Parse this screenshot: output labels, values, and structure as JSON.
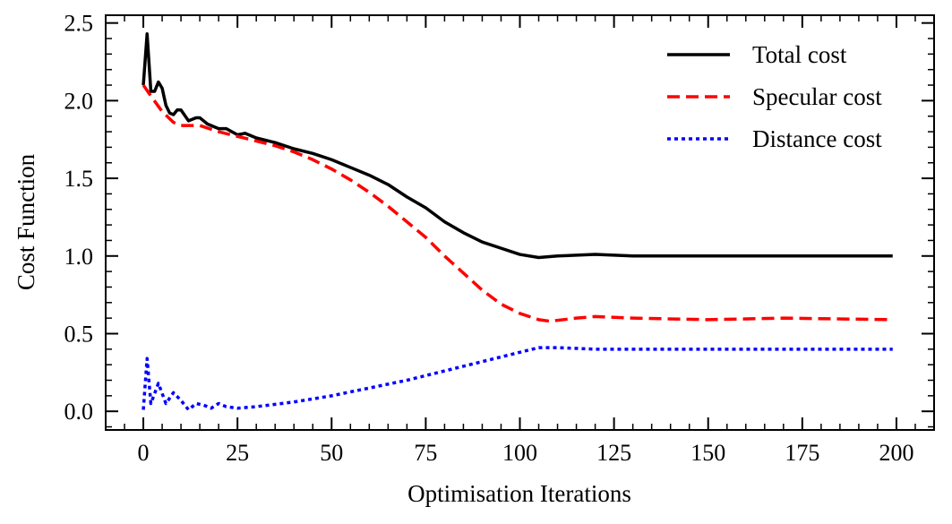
{
  "chart_data": {
    "type": "line",
    "xlabel": "Optimisation Iterations",
    "ylabel": "Cost Function",
    "xlim": [
      -10,
      210
    ],
    "ylim": [
      -0.12,
      2.55
    ],
    "xticks": [
      0,
      25,
      50,
      75,
      100,
      125,
      150,
      175,
      200
    ],
    "yticks": [
      0.0,
      0.5,
      1.0,
      1.5,
      2.0,
      2.5
    ],
    "xtick_labels": [
      "0",
      "25",
      "50",
      "75",
      "100",
      "125",
      "150",
      "175",
      "200"
    ],
    "ytick_labels": [
      "0.0",
      "0.5",
      "1.0",
      "1.5",
      "2.0",
      "2.5"
    ],
    "grid": false,
    "legend_position": "top-right",
    "series": [
      {
        "name": "Total cost",
        "color": "#000000",
        "style": "solid",
        "x": [
          0,
          1,
          2,
          3,
          4,
          5,
          6,
          7,
          8,
          9,
          10,
          12,
          14,
          15,
          17,
          20,
          22,
          25,
          27,
          30,
          35,
          40,
          45,
          50,
          55,
          60,
          65,
          70,
          75,
          80,
          85,
          90,
          95,
          100,
          105,
          110,
          120,
          130,
          140,
          160,
          180,
          199
        ],
        "y": [
          2.1,
          2.43,
          2.06,
          2.06,
          2.12,
          2.08,
          1.97,
          1.92,
          1.91,
          1.94,
          1.94,
          1.87,
          1.89,
          1.89,
          1.85,
          1.82,
          1.82,
          1.78,
          1.79,
          1.76,
          1.73,
          1.69,
          1.66,
          1.62,
          1.57,
          1.52,
          1.46,
          1.38,
          1.31,
          1.22,
          1.15,
          1.09,
          1.05,
          1.01,
          0.99,
          1.0,
          1.01,
          1.0,
          1.0,
          1.0,
          1.0,
          1.0
        ]
      },
      {
        "name": "Specular cost",
        "color": "#ff0000",
        "style": "dashed",
        "x": [
          0,
          2,
          5,
          8,
          10,
          15,
          20,
          25,
          30,
          35,
          40,
          45,
          50,
          55,
          60,
          65,
          70,
          75,
          80,
          85,
          90,
          95,
          100,
          105,
          108,
          115,
          120,
          130,
          150,
          170,
          199
        ],
        "y": [
          2.1,
          2.03,
          1.93,
          1.86,
          1.84,
          1.84,
          1.8,
          1.77,
          1.74,
          1.71,
          1.67,
          1.62,
          1.56,
          1.49,
          1.41,
          1.32,
          1.22,
          1.12,
          1.0,
          0.89,
          0.78,
          0.69,
          0.63,
          0.59,
          0.58,
          0.6,
          0.61,
          0.6,
          0.59,
          0.6,
          0.59
        ]
      },
      {
        "name": "Distance cost",
        "color": "#0000ff",
        "style": "dotted",
        "x": [
          0,
          1,
          2,
          4,
          6,
          8,
          10,
          12,
          14,
          16,
          18,
          20,
          22,
          25,
          30,
          40,
          50,
          60,
          70,
          80,
          90,
          100,
          105,
          110,
          120,
          199
        ],
        "y": [
          0.01,
          0.34,
          0.05,
          0.18,
          0.05,
          0.12,
          0.07,
          0.01,
          0.05,
          0.04,
          0.02,
          0.05,
          0.03,
          0.02,
          0.03,
          0.06,
          0.1,
          0.15,
          0.2,
          0.26,
          0.32,
          0.38,
          0.41,
          0.41,
          0.4,
          0.4
        ]
      }
    ]
  }
}
